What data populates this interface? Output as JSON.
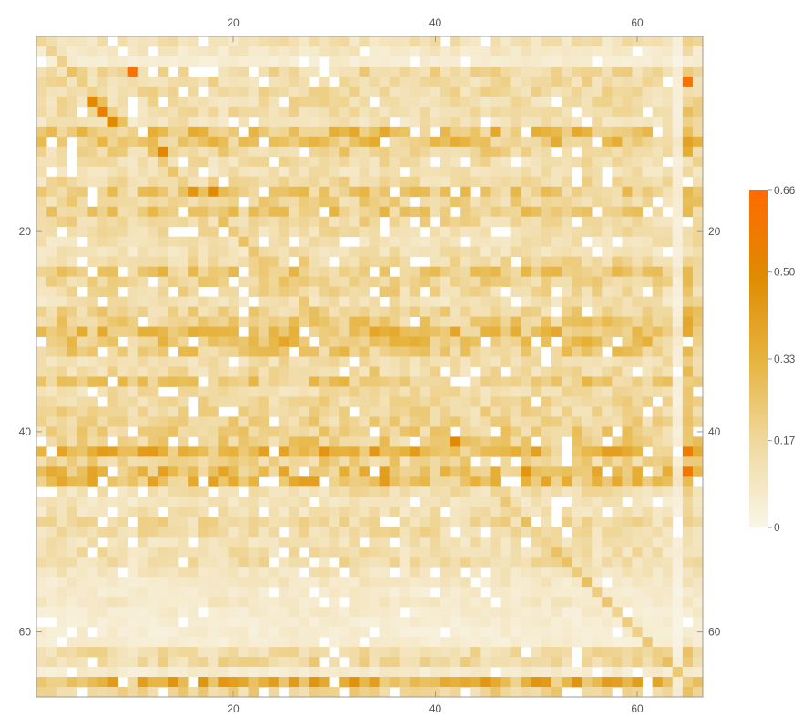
{
  "chart_data": {
    "type": "heatmap",
    "title": "",
    "xlabel": "",
    "ylabel": "",
    "rows": 66,
    "cols": 66,
    "xlim": [
      0.5,
      66.5
    ],
    "ylim": [
      0.5,
      66.5
    ],
    "x_ticks": [
      20,
      40,
      60
    ],
    "y_ticks": [
      20,
      40,
      60
    ],
    "x_tick_labels": [
      "20",
      "40",
      "60"
    ],
    "y_tick_labels": [
      "20",
      "40",
      "60"
    ],
    "value_range": [
      0,
      0.66
    ],
    "colorbar": {
      "ticks": [
        0,
        0.17,
        0.33,
        0.5,
        0.66
      ],
      "tick_labels": [
        "0",
        "0.17",
        "0.33",
        "0.50",
        "0.66"
      ],
      "colors": [
        "#f9f5e8",
        "#f0d9a0",
        "#e6b33d",
        "#e08a00",
        "#ff6a00"
      ],
      "placement": "right"
    },
    "row_profile": [
      0.12,
      0.08,
      0.05,
      0.16,
      0.15,
      0.15,
      0.14,
      0.14,
      0.12,
      0.26,
      0.25,
      0.18,
      0.14,
      0.12,
      0.15,
      0.22,
      0.18,
      0.22,
      0.16,
      0.14,
      0.12,
      0.12,
      0.16,
      0.23,
      0.18,
      0.17,
      0.12,
      0.18,
      0.21,
      0.27,
      0.28,
      0.22,
      0.14,
      0.15,
      0.22,
      0.14,
      0.16,
      0.17,
      0.18,
      0.2,
      0.2,
      0.3,
      0.18,
      0.28,
      0.28,
      0.13,
      0.1,
      0.12,
      0.16,
      0.15,
      0.12,
      0.13,
      0.14,
      0.1,
      0.08,
      0.06,
      0.08,
      0.06,
      0.05,
      0.05,
      0.05,
      0.15,
      0.16,
      0.06,
      0.32,
      0.18
    ],
    "col_profile": [
      0.85,
      0.9,
      1.0,
      1.0,
      1.0,
      1.0,
      1.0,
      1.0,
      1.0,
      0.75,
      1.0,
      1.0,
      1.0,
      1.0,
      1.0,
      1.0,
      1.0,
      1.0,
      1.0,
      1.0,
      1.0,
      1.0,
      1.0,
      1.0,
      1.0,
      1.05,
      1.05,
      1.05,
      1.05,
      1.05,
      1.05,
      1.05,
      1.05,
      1.05,
      1.05,
      1.05,
      0.9,
      1.0,
      1.0,
      1.0,
      1.0,
      1.0,
      1.0,
      1.0,
      1.0,
      1.0,
      1.0,
      1.0,
      1.0,
      1.0,
      1.0,
      1.0,
      1.0,
      1.0,
      1.0,
      1.0,
      1.0,
      1.0,
      1.0,
      1.0,
      0.95,
      0.9,
      0.9,
      0.25,
      1.4,
      1.1
    ],
    "highlights": [
      {
        "row": 4,
        "col": 10,
        "value": 0.62
      },
      {
        "row": 7,
        "col": 6,
        "value": 0.5
      },
      {
        "row": 8,
        "col": 7,
        "value": 0.55
      },
      {
        "row": 9,
        "col": 8,
        "value": 0.5
      },
      {
        "row": 12,
        "col": 13,
        "value": 0.52
      },
      {
        "row": 16,
        "col": 16,
        "value": 0.45
      },
      {
        "row": 16,
        "col": 18,
        "value": 0.5
      },
      {
        "row": 41,
        "col": 42,
        "value": 0.5
      },
      {
        "row": 44,
        "col": 49,
        "value": 0.45
      },
      {
        "row": 44,
        "col": 65,
        "value": 0.6
      },
      {
        "row": 5,
        "col": 65,
        "value": 0.62
      },
      {
        "row": 65,
        "col": 64,
        "value": 0.05
      }
    ]
  }
}
